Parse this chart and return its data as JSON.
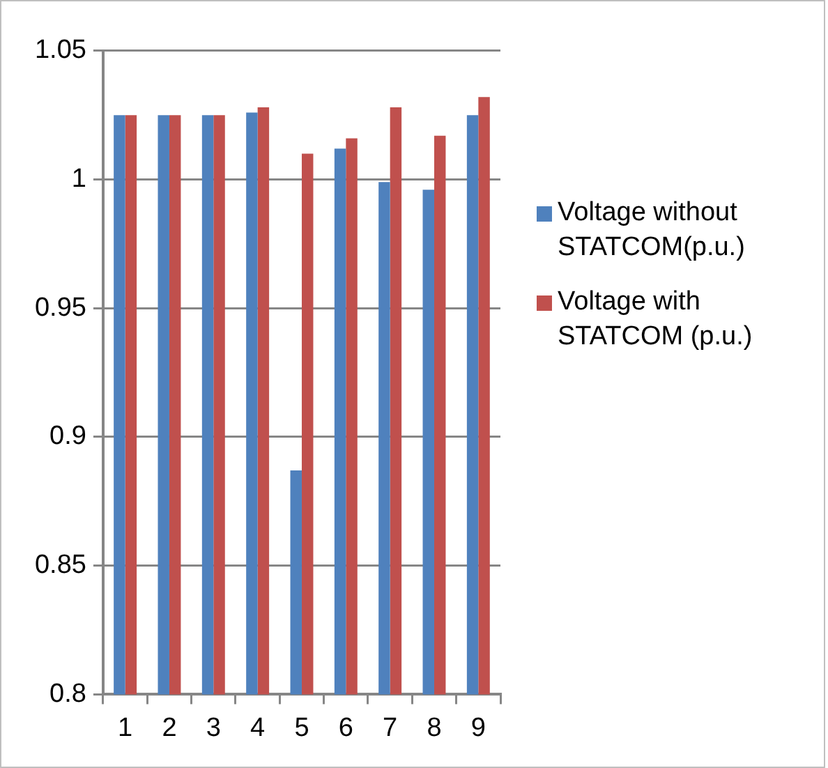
{
  "chart_data": {
    "type": "bar",
    "categories": [
      "1",
      "2",
      "3",
      "4",
      "5",
      "6",
      "7",
      "8",
      "9"
    ],
    "series": [
      {
        "name": "Voltage without STATCOM(p.u.)",
        "color": "#4f81bd",
        "values": [
          1.025,
          1.025,
          1.025,
          1.026,
          0.887,
          1.012,
          0.999,
          0.996,
          1.025
        ]
      },
      {
        "name": "Voltage with STATCOM (p.u.)",
        "color": "#c0504d",
        "values": [
          1.025,
          1.025,
          1.025,
          1.028,
          1.01,
          1.016,
          1.028,
          1.017,
          1.032
        ]
      }
    ],
    "ylim": [
      0.8,
      1.05
    ],
    "yticks": [
      {
        "value": 0.8,
        "label": "0.8"
      },
      {
        "value": 0.85,
        "label": "0.85"
      },
      {
        "value": 0.9,
        "label": "0.9"
      },
      {
        "value": 0.95,
        "label": "0.95"
      },
      {
        "value": 1,
        "label": "1"
      },
      {
        "value": 1.05,
        "label": "1.05"
      }
    ],
    "grid": "y",
    "legend": "right"
  }
}
